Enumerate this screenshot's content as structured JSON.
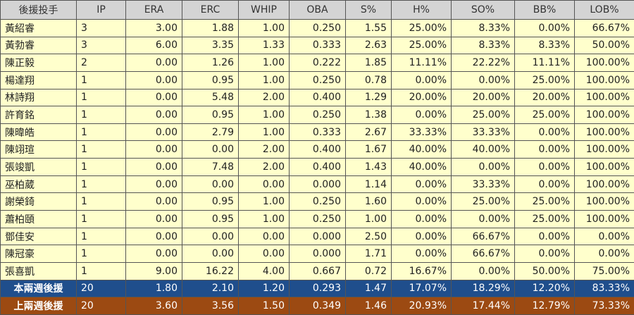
{
  "table": {
    "header": [
      "後援投手",
      "IP",
      "ERA",
      "ERC",
      "WHIP",
      "OBA",
      "S%",
      "H%",
      "SO%",
      "BB%",
      "LOB%"
    ],
    "rows": [
      [
        "黃紹睿",
        "3",
        "3.00",
        "1.88",
        "1.00",
        "0.250",
        "1.55",
        "25.00%",
        "8.33%",
        "0.00%",
        "66.67%"
      ],
      [
        "黃勃睿",
        "3",
        "6.00",
        "3.35",
        "1.33",
        "0.333",
        "2.63",
        "25.00%",
        "8.33%",
        "8.33%",
        "50.00%"
      ],
      [
        "陳正毅",
        "2",
        "0.00",
        "1.26",
        "1.00",
        "0.222",
        "1.85",
        "11.11%",
        "22.22%",
        "11.11%",
        "100.00%"
      ],
      [
        "楊達翔",
        "1",
        "0.00",
        "0.95",
        "1.00",
        "0.250",
        "0.78",
        "0.00%",
        "0.00%",
        "25.00%",
        "100.00%"
      ],
      [
        "林詩翔",
        "1",
        "0.00",
        "5.48",
        "2.00",
        "0.400",
        "1.29",
        "20.00%",
        "20.00%",
        "20.00%",
        "100.00%"
      ],
      [
        "許育銘",
        "1",
        "0.00",
        "0.95",
        "1.00",
        "0.250",
        "1.38",
        "0.00%",
        "25.00%",
        "25.00%",
        "100.00%"
      ],
      [
        "陳暐皓",
        "1",
        "0.00",
        "2.79",
        "1.00",
        "0.333",
        "2.67",
        "33.33%",
        "33.33%",
        "0.00%",
        "100.00%"
      ],
      [
        "陳翊瑄",
        "1",
        "0.00",
        "0.00",
        "2.00",
        "0.400",
        "1.67",
        "40.00%",
        "40.00%",
        "0.00%",
        "100.00%"
      ],
      [
        "張竣凱",
        "1",
        "0.00",
        "7.48",
        "2.00",
        "0.400",
        "1.43",
        "40.00%",
        "0.00%",
        "0.00%",
        "100.00%"
      ],
      [
        "巫柏葳",
        "1",
        "0.00",
        "0.00",
        "0.00",
        "0.000",
        "1.14",
        "0.00%",
        "33.33%",
        "0.00%",
        "100.00%"
      ],
      [
        "謝榮錡",
        "1",
        "0.00",
        "0.95",
        "1.00",
        "0.250",
        "1.60",
        "0.00%",
        "25.00%",
        "25.00%",
        "100.00%"
      ],
      [
        "蕭柏頤",
        "1",
        "0.00",
        "0.95",
        "1.00",
        "0.250",
        "1.00",
        "0.00%",
        "0.00%",
        "25.00%",
        "100.00%"
      ],
      [
        "鄧佳安",
        "1",
        "0.00",
        "0.00",
        "0.00",
        "0.000",
        "2.50",
        "0.00%",
        "66.67%",
        "0.00%",
        "0.00%"
      ],
      [
        "陳冠豪",
        "1",
        "0.00",
        "0.00",
        "0.00",
        "0.000",
        "1.71",
        "0.00%",
        "66.67%",
        "0.00%",
        "0.00%"
      ],
      [
        "張喜凱",
        "1",
        "9.00",
        "16.22",
        "4.00",
        "0.667",
        "0.72",
        "16.67%",
        "0.00%",
        "50.00%",
        "75.00%"
      ]
    ],
    "summary": [
      [
        "本兩週後援",
        "20",
        "1.80",
        "2.10",
        "1.20",
        "0.293",
        "1.47",
        "17.07%",
        "18.29%",
        "12.20%",
        "83.33%"
      ],
      [
        "上兩週後援",
        "20",
        "3.60",
        "3.56",
        "1.50",
        "0.349",
        "1.46",
        "20.93%",
        "17.44%",
        "12.79%",
        "73.33%"
      ]
    ]
  }
}
